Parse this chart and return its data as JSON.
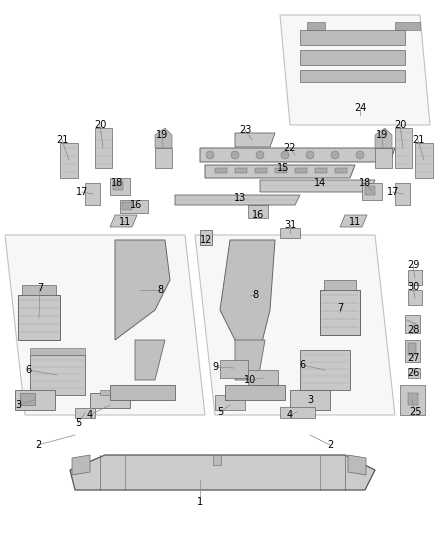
{
  "background_color": "#ffffff",
  "figsize": [
    4.38,
    5.33
  ],
  "dpi": 100,
  "line_color": "#555555",
  "label_color": "#000000",
  "label_fontsize": 7.0,
  "leader_color": "#888888",
  "leader_lw": 0.5,
  "part_lw": 0.6,
  "part_fill": "#d8d8d8",
  "part_edge": "#666666",
  "panel_fill": "#eeeeee",
  "panel_edge": "#888888",
  "panel_alpha": 0.5
}
